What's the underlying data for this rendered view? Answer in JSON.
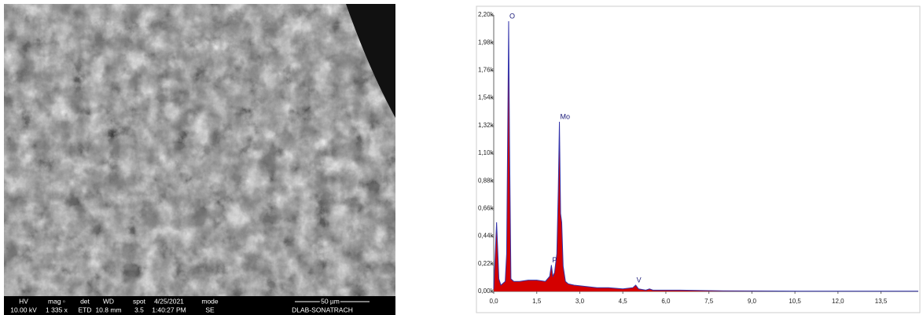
{
  "sem_image": {
    "info_headers": [
      "HV",
      "mag ▫",
      "det",
      "WD",
      "spot",
      "4/25/2021",
      "mode"
    ],
    "info_values": [
      "10.00 kV",
      "1 335 x",
      "ETD",
      "10.8 mm",
      "3.5",
      "1:40:27 PM",
      "SE"
    ],
    "scale_bar": "50 µm",
    "lab": "DLAB-SONATRACH"
  },
  "chart_data": {
    "type": "area",
    "x": [
      0.0,
      0.1,
      0.18,
      0.25,
      0.3,
      0.4,
      0.45,
      0.5,
      0.52,
      0.55,
      0.6,
      0.7,
      0.9,
      1.2,
      1.5,
      1.8,
      1.95,
      2.01,
      2.06,
      2.12,
      2.2,
      2.25,
      2.29,
      2.33,
      2.37,
      2.42,
      2.5,
      2.6,
      2.8,
      3.2,
      3.6,
      4.0,
      4.5,
      4.85,
      4.95,
      5.05,
      5.3,
      5.43,
      5.55,
      6.5,
      8,
      10,
      12,
      14.8
    ],
    "series": [
      {
        "color": "#d40000",
        "values": [
          0.02,
          0.55,
          0.1,
          0.05,
          0.06,
          0.08,
          0.3,
          1.6,
          2.15,
          1.2,
          0.1,
          0.08,
          0.08,
          0.09,
          0.09,
          0.08,
          0.12,
          0.21,
          0.12,
          0.15,
          0.3,
          0.8,
          1.35,
          0.62,
          0.55,
          0.2,
          0.08,
          0.06,
          0.05,
          0.04,
          0.03,
          0.03,
          0.02,
          0.03,
          0.05,
          0.02,
          0.01,
          0.02,
          0.01,
          0.01,
          0.005,
          0.003,
          0.002,
          0.002
        ]
      }
    ],
    "outline_color": "#3333aa",
    "xlim": [
      0,
      14.8
    ],
    "ylim": [
      0,
      2.2
    ],
    "xticks": [
      {
        "value": 0,
        "label": "0,0"
      },
      {
        "value": 1.5,
        "label": "1,5"
      },
      {
        "value": 3,
        "label": "3,0"
      },
      {
        "value": 4.5,
        "label": "4,5"
      },
      {
        "value": 6,
        "label": "6,0"
      },
      {
        "value": 7.5,
        "label": "7,5"
      },
      {
        "value": 9,
        "label": "9,0"
      },
      {
        "value": 10.5,
        "label": "10,5"
      },
      {
        "value": 12,
        "label": "12,0"
      },
      {
        "value": 13.5,
        "label": "13,5"
      }
    ],
    "yticks": [
      {
        "value": 0,
        "label": "0,00k"
      },
      {
        "value": 0.22,
        "label": "0,22k"
      },
      {
        "value": 0.44,
        "label": "0,44k"
      },
      {
        "value": 0.66,
        "label": "0,66k"
      },
      {
        "value": 0.88,
        "label": "0,88k"
      },
      {
        "value": 1.1,
        "label": "1,10k"
      },
      {
        "value": 1.32,
        "label": "1,32k"
      },
      {
        "value": 1.54,
        "label": "1,54k"
      },
      {
        "value": 1.76,
        "label": "1,76k"
      },
      {
        "value": 1.98,
        "label": "1,98k"
      },
      {
        "value": 2.2,
        "label": "2,20k"
      }
    ],
    "annotations": [
      {
        "text": "O",
        "x": 0.52,
        "y": 2.15
      },
      {
        "text": "Mo",
        "x": 2.29,
        "y": 1.35
      },
      {
        "text": "P",
        "x": 2.01,
        "y": 0.21
      },
      {
        "text": "V",
        "x": 4.95,
        "y": 0.05
      }
    ]
  }
}
